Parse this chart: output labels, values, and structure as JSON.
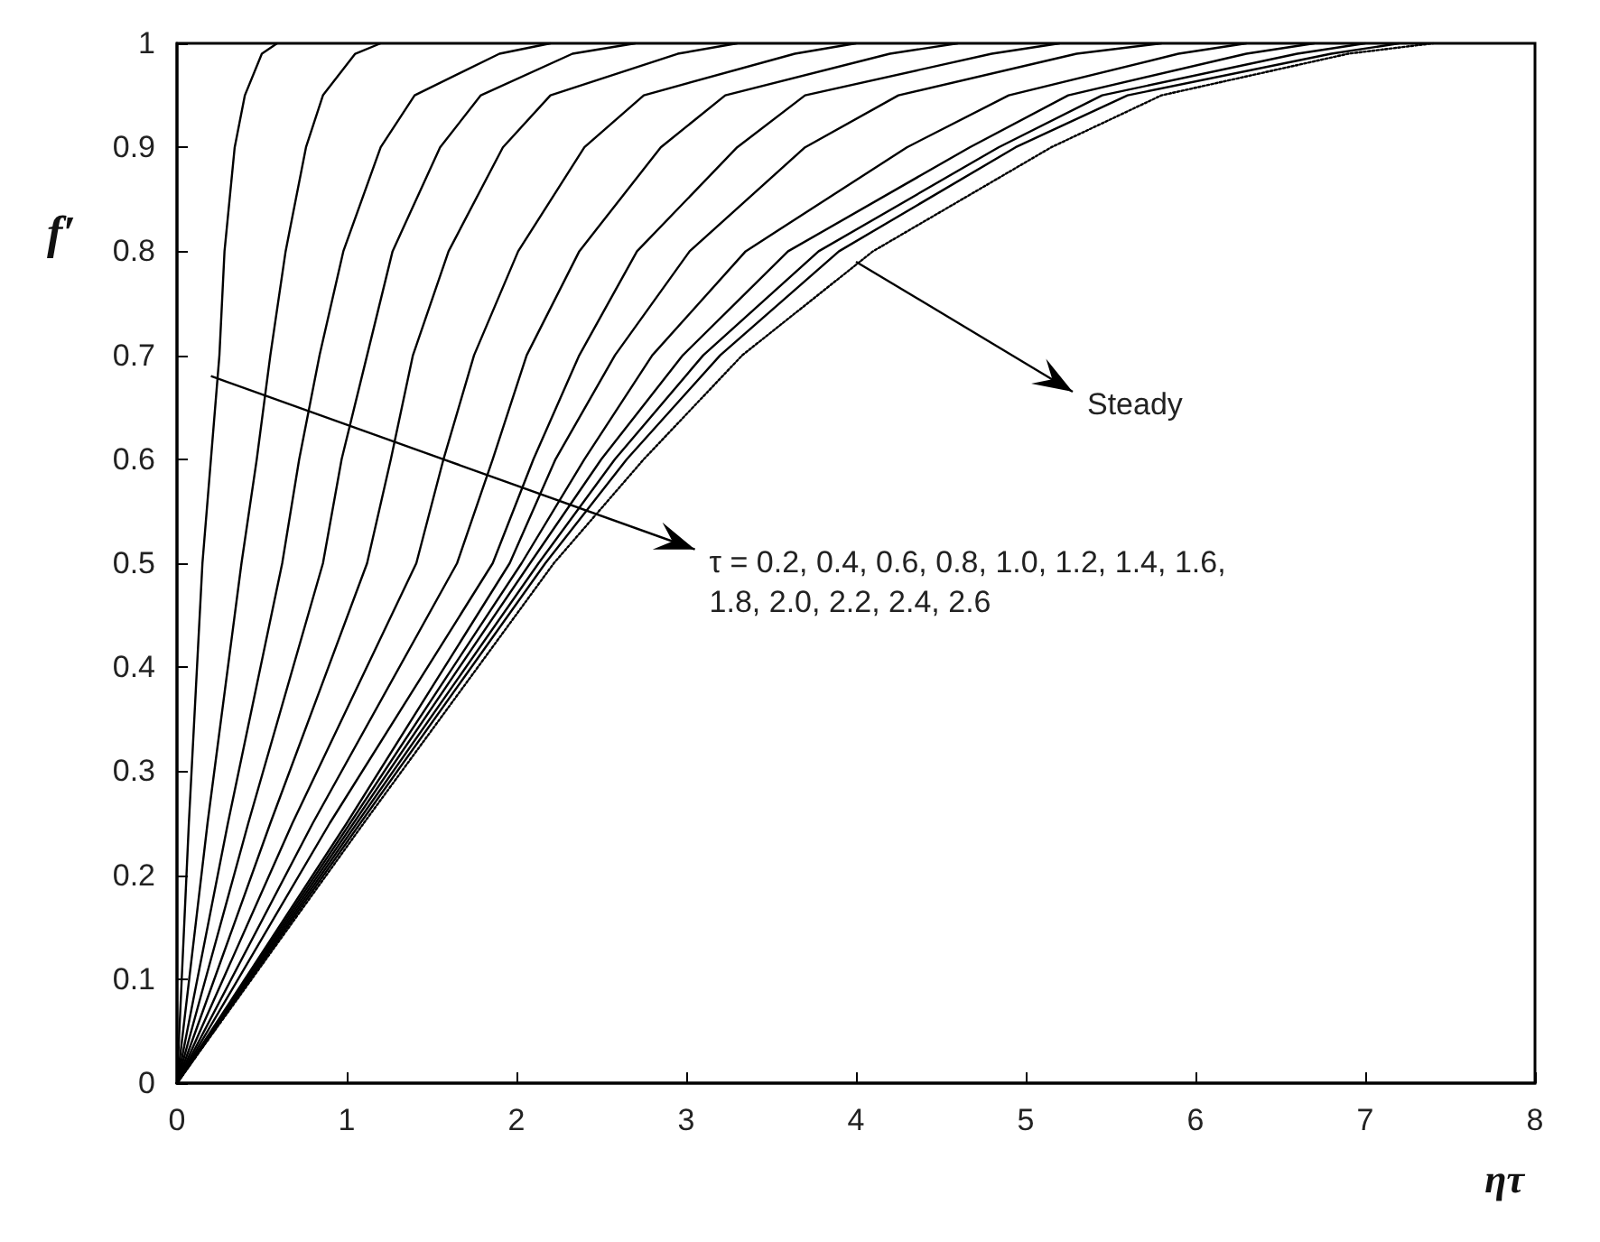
{
  "chart_data": {
    "type": "line",
    "xlabel": "ητ",
    "ylabel": "f′",
    "xlim": [
      0,
      8
    ],
    "xticks": [
      0,
      1,
      2,
      3,
      4,
      5,
      6,
      7,
      8
    ],
    "ylim": [
      0,
      1
    ],
    "yticks": [
      0,
      0.1,
      0.2,
      0.3,
      0.4,
      0.5,
      0.6,
      0.7,
      0.8,
      0.9,
      1
    ],
    "grid": false,
    "marker": "none",
    "line_style": "solid",
    "annotations": [
      {
        "text": "Steady",
        "x": 4.0,
        "y": 0.79
      },
      {
        "text": "τ = 0.2, 0.4, 0.6, 0.8, 1.0, 1.2, 1.4, 1.6,\n1.8, 2.0, 2.2, 2.4, 2.6",
        "x": 0.2,
        "y": 0.68
      }
    ],
    "series": [
      {
        "color": "#000000",
        "x": [
          0,
          0.07,
          0.15,
          0.2,
          0.25,
          0.28,
          0.34,
          0.4,
          0.5,
          0.59
        ],
        "values": [
          0,
          0.25,
          0.5,
          0.6,
          0.7,
          0.8,
          0.9,
          0.95,
          0.99,
          1
        ]
      },
      {
        "color": "#000000",
        "x": [
          0,
          0.18,
          0.38,
          0.47,
          0.55,
          0.64,
          0.76,
          0.86,
          1.05,
          1.2
        ],
        "values": [
          0,
          0.25,
          0.5,
          0.6,
          0.7,
          0.8,
          0.9,
          0.95,
          0.99,
          1
        ]
      },
      {
        "color": "#000000",
        "x": [
          0,
          0.3,
          0.62,
          0.72,
          0.84,
          0.98,
          1.2,
          1.4,
          1.9,
          2.2
        ],
        "values": [
          0,
          0.25,
          0.5,
          0.6,
          0.7,
          0.8,
          0.9,
          0.95,
          0.99,
          1
        ]
      },
      {
        "color": "#000000",
        "x": [
          0,
          0.42,
          0.86,
          0.97,
          1.12,
          1.27,
          1.55,
          1.79,
          2.33,
          2.7
        ],
        "values": [
          0,
          0.25,
          0.5,
          0.6,
          0.7,
          0.8,
          0.9,
          0.95,
          0.99,
          1
        ]
      },
      {
        "color": "#000000",
        "x": [
          0,
          0.55,
          1.12,
          1.26,
          1.39,
          1.6,
          1.92,
          2.2,
          2.95,
          3.3
        ],
        "values": [
          0,
          0.25,
          0.5,
          0.6,
          0.7,
          0.8,
          0.9,
          0.95,
          0.99,
          1
        ]
      },
      {
        "color": "#000000",
        "x": [
          0,
          0.68,
          1.41,
          1.57,
          1.75,
          2.01,
          2.4,
          2.75,
          3.64,
          4.0
        ],
        "values": [
          0,
          0.25,
          0.5,
          0.6,
          0.7,
          0.8,
          0.9,
          0.95,
          0.99,
          1
        ]
      },
      {
        "color": "#000000",
        "x": [
          0,
          0.8,
          1.65,
          1.86,
          2.06,
          2.37,
          2.85,
          3.23,
          4.2,
          4.6
        ],
        "values": [
          0,
          0.25,
          0.5,
          0.6,
          0.7,
          0.8,
          0.9,
          0.95,
          0.99,
          1
        ]
      },
      {
        "color": "#000000",
        "x": [
          0,
          0.9,
          1.86,
          2.1,
          2.37,
          2.71,
          3.3,
          3.7,
          4.8,
          5.2
        ],
        "values": [
          0,
          0.25,
          0.5,
          0.6,
          0.7,
          0.8,
          0.9,
          0.95,
          0.99,
          1
        ]
      },
      {
        "color": "#000000",
        "x": [
          0,
          1.0,
          1.96,
          2.23,
          2.58,
          3.02,
          3.7,
          4.25,
          5.3,
          5.8
        ],
        "values": [
          0,
          0.25,
          0.5,
          0.6,
          0.7,
          0.8,
          0.9,
          0.95,
          0.99,
          1
        ]
      },
      {
        "color": "#000000",
        "x": [
          0,
          1.02,
          2.03,
          2.4,
          2.8,
          3.35,
          4.3,
          4.9,
          5.9,
          6.3
        ],
        "values": [
          0,
          0.25,
          0.5,
          0.6,
          0.7,
          0.8,
          0.9,
          0.95,
          0.99,
          1
        ]
      },
      {
        "color": "#000000",
        "x": [
          0,
          1.04,
          2.08,
          2.5,
          2.98,
          3.6,
          4.67,
          5.25,
          6.3,
          6.7
        ],
        "values": [
          0,
          0.25,
          0.5,
          0.6,
          0.7,
          0.8,
          0.9,
          0.95,
          0.99,
          1
        ]
      },
      {
        "color": "#000000",
        "x": [
          0,
          1.06,
          2.13,
          2.58,
          3.1,
          3.78,
          4.84,
          5.45,
          6.6,
          7.0
        ],
        "values": [
          0,
          0.25,
          0.5,
          0.6,
          0.7,
          0.8,
          0.9,
          0.95,
          0.99,
          1
        ]
      },
      {
        "color": "#000000",
        "x": [
          0,
          1.08,
          2.17,
          2.65,
          3.2,
          3.9,
          4.94,
          5.6,
          6.8,
          7.2
        ],
        "values": [
          0,
          0.25,
          0.5,
          0.6,
          0.7,
          0.8,
          0.9,
          0.95,
          0.99,
          1
        ]
      },
      {
        "color": "#000000",
        "line_style": "dotted",
        "x": [
          0,
          1.1,
          2.22,
          2.75,
          3.33,
          4.1,
          5.15,
          5.8,
          6.9,
          7.4
        ],
        "values": [
          0,
          0.25,
          0.5,
          0.6,
          0.7,
          0.8,
          0.9,
          0.95,
          0.99,
          1
        ]
      }
    ]
  }
}
